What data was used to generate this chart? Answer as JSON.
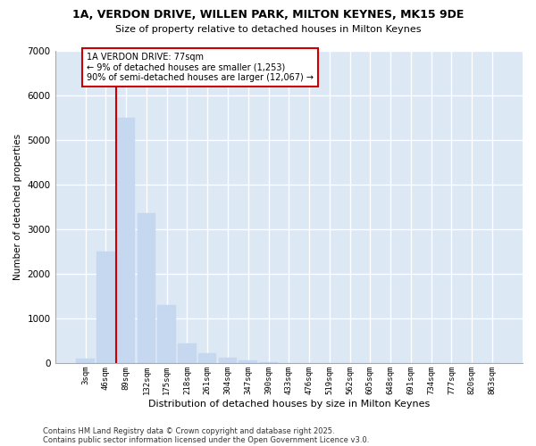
{
  "title_line1": "1A, VERDON DRIVE, WILLEN PARK, MILTON KEYNES, MK15 9DE",
  "title_line2": "Size of property relative to detached houses in Milton Keynes",
  "xlabel": "Distribution of detached houses by size in Milton Keynes",
  "ylabel": "Number of detached properties",
  "categories": [
    "3sqm",
    "46sqm",
    "89sqm",
    "132sqm",
    "175sqm",
    "218sqm",
    "261sqm",
    "304sqm",
    "347sqm",
    "390sqm",
    "433sqm",
    "476sqm",
    "519sqm",
    "562sqm",
    "605sqm",
    "648sqm",
    "691sqm",
    "734sqm",
    "777sqm",
    "820sqm",
    "863sqm"
  ],
  "values": [
    100,
    2500,
    5500,
    3350,
    1300,
    430,
    220,
    110,
    55,
    20,
    0,
    0,
    0,
    0,
    0,
    0,
    0,
    0,
    0,
    0,
    0
  ],
  "bar_color": "#c5d8f0",
  "bar_edge_color": "#c5d8f0",
  "annotation_text": "1A VERDON DRIVE: 77sqm\n← 9% of detached houses are smaller (1,253)\n90% of semi-detached houses are larger (12,067) →",
  "annotation_box_color": "#ffffff",
  "annotation_box_edge": "#cc0000",
  "vline_color": "#cc0000",
  "vline_x_index": 2,
  "background_color": "#ffffff",
  "plot_bg_color": "#dde8f5",
  "grid_color": "#ffffff",
  "ylim": [
    0,
    7000
  ],
  "yticks": [
    0,
    1000,
    2000,
    3000,
    4000,
    5000,
    6000,
    7000
  ],
  "footnote1": "Contains HM Land Registry data © Crown copyright and database right 2025.",
  "footnote2": "Contains public sector information licensed under the Open Government Licence v3.0."
}
